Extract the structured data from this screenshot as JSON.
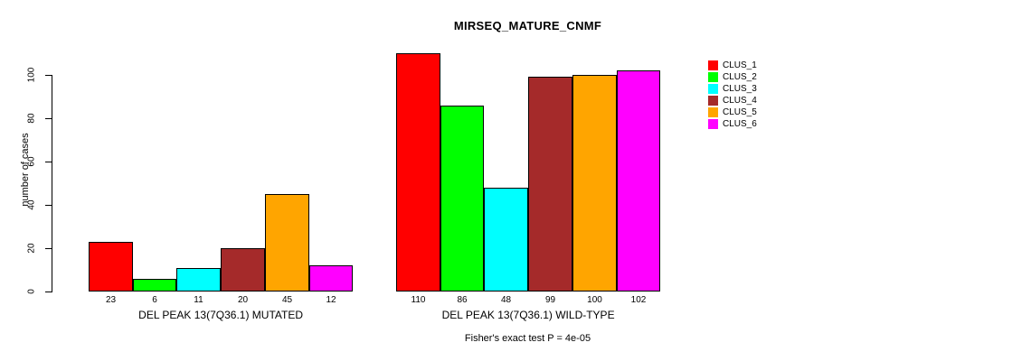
{
  "chart": {
    "title": "MIRSEQ_MATURE_CNMF",
    "ylabel": "number of cases",
    "footer": "Fisher's exact test P = 4e-05"
  },
  "chart_data": {
    "type": "bar",
    "title": "MIRSEQ_MATURE_CNMF",
    "xlabel": "",
    "ylabel": "number of cases",
    "ylim": [
      0,
      110
    ],
    "yticks": [
      0,
      20,
      40,
      60,
      80,
      100
    ],
    "grid": false,
    "legend_position": "right",
    "annotation": "Fisher's exact test P = 4e-05",
    "categories": [
      "DEL PEAK 13(7Q36.1) MUTATED",
      "DEL PEAK 13(7Q36.1) WILD-TYPE"
    ],
    "series": [
      {
        "name": "CLUS_1",
        "color": "#FF0000",
        "values": [
          23,
          110
        ]
      },
      {
        "name": "CLUS_2",
        "color": "#00FF00",
        "values": [
          6,
          86
        ]
      },
      {
        "name": "CLUS_3",
        "color": "#00FFFF",
        "values": [
          11,
          48
        ]
      },
      {
        "name": "CLUS_4",
        "color": "#A52A2A",
        "values": [
          20,
          99
        ]
      },
      {
        "name": "CLUS_5",
        "color": "#FFA500",
        "values": [
          45,
          100
        ]
      },
      {
        "name": "CLUS_6",
        "color": "#FF00FF",
        "values": [
          12,
          102
        ]
      }
    ],
    "bar_value_labels": [
      [
        23,
        6,
        11,
        20,
        45,
        12
      ],
      [
        110,
        86,
        48,
        99,
        100,
        102
      ]
    ]
  }
}
